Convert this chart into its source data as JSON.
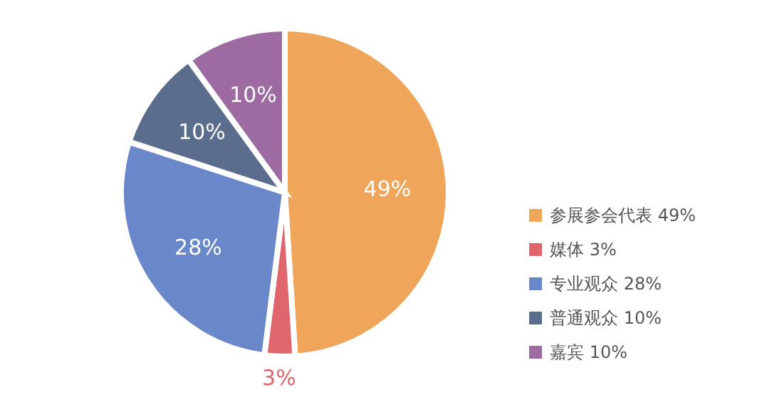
{
  "chart_data": {
    "type": "pie",
    "categories": [
      "参展参会代表 49%",
      "媒体 3%",
      "专业观众 28%",
      "普通观众 10%",
      "嘉宾 10%"
    ],
    "values": [
      49,
      3,
      28,
      10,
      10
    ],
    "colors": [
      "#f0a65a",
      "#e0666e",
      "#6a87c9",
      "#5a6d8c",
      "#9e6aa2"
    ],
    "value_labels": [
      "49%",
      "3%",
      "28%",
      "10%",
      "10%"
    ],
    "legend": "right"
  }
}
